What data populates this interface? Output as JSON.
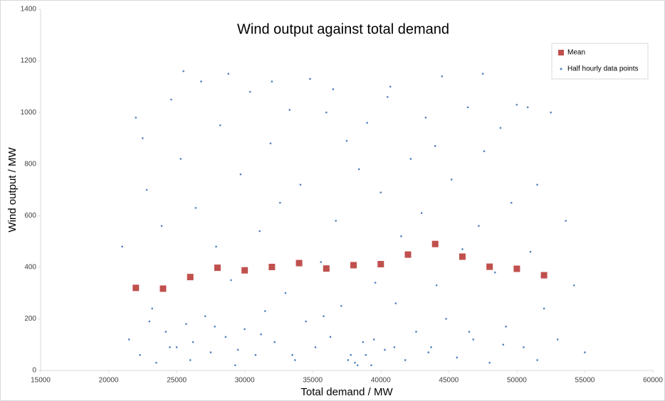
{
  "chart_data": {
    "type": "scatter",
    "title": "Wind output against total demand",
    "x_label": "Total demand / MW",
    "y_label": "Wind output / MW",
    "xlim": [
      15000,
      60000
    ],
    "xticks": [
      15000,
      20000,
      25000,
      30000,
      35000,
      40000,
      45000,
      50000,
      55000,
      60000
    ],
    "ylim": [
      0,
      1400
    ],
    "yticks": [
      0,
      200,
      400,
      600,
      800,
      1000,
      1200,
      1400
    ],
    "grid": false,
    "legend": "top-right",
    "series": [
      {
        "name": "Mean",
        "color": "#c0504d",
        "marker": "square",
        "x": [
          22000,
          24000,
          26000,
          28000,
          30000,
          32000,
          34000,
          36000,
          38000,
          40000,
          42000,
          44000,
          46000,
          48000,
          50000,
          52000
        ],
        "values": [
          320,
          317,
          362,
          398,
          388,
          401,
          416,
          395,
          408,
          412,
          449,
          490,
          441,
          402,
          394,
          369
        ]
      },
      {
        "name": "Half hourly data points",
        "color": "#4f81bd",
        "marker": "dot",
        "x": [
          21000,
          21500,
          22000,
          22300,
          22800,
          23200,
          23500,
          23900,
          24200,
          24600,
          25000,
          25300,
          25700,
          26000,
          26400,
          26800,
          27100,
          27500,
          27900,
          28200,
          28600,
          29000,
          29300,
          29700,
          30000,
          30400,
          30800,
          31100,
          31500,
          31900,
          32200,
          32600,
          33000,
          33300,
          33700,
          34100,
          34500,
          34800,
          35200,
          35600,
          36000,
          36300,
          36700,
          37100,
          37500,
          37800,
          38100,
          38400,
          38700,
          39000,
          39300,
          39600,
          40000,
          40300,
          40700,
          41100,
          41500,
          41800,
          42200,
          42600,
          43000,
          43300,
          43700,
          44100,
          44500,
          44800,
          45200,
          45600,
          46000,
          46400,
          46800,
          47200,
          47600,
          48000,
          48400,
          48800,
          49200,
          49600,
          50000,
          50500,
          51000,
          51500,
          52000,
          52500,
          53000,
          53600,
          54200,
          55000,
          23000,
          24500,
          26200,
          27800,
          29500,
          31200,
          33500,
          35800,
          37600,
          38300,
          38900,
          39500,
          41000,
          43500,
          46500,
          49000,
          51500,
          22500,
          25500,
          28800,
          32000,
          36500,
          40500,
          44000,
          47500,
          50800
        ],
        "values": [
          480,
          120,
          980,
          60,
          700,
          240,
          30,
          560,
          150,
          1050,
          90,
          820,
          180,
          40,
          630,
          1120,
          210,
          70,
          480,
          950,
          130,
          350,
          20,
          760,
          160,
          1080,
          60,
          540,
          230,
          880,
          110,
          650,
          300,
          1010,
          40,
          720,
          190,
          1130,
          90,
          420,
          1000,
          130,
          580,
          250,
          890,
          60,
          30,
          780,
          110,
          960,
          20,
          340,
          690,
          80,
          1100,
          260,
          520,
          40,
          820,
          150,
          610,
          980,
          90,
          330,
          1140,
          200,
          740,
          50,
          470,
          1020,
          120,
          560,
          850,
          30,
          380,
          940,
          170,
          650,
          1030,
          90,
          460,
          720,
          240,
          1000,
          120,
          580,
          330,
          70,
          190,
          90,
          110,
          170,
          80,
          140,
          60,
          210,
          40,
          20,
          60,
          120,
          90,
          70,
          150,
          100,
          40,
          900,
          1160,
          1150,
          1120,
          1090,
          1060,
          870,
          1150,
          1020
        ]
      }
    ]
  }
}
